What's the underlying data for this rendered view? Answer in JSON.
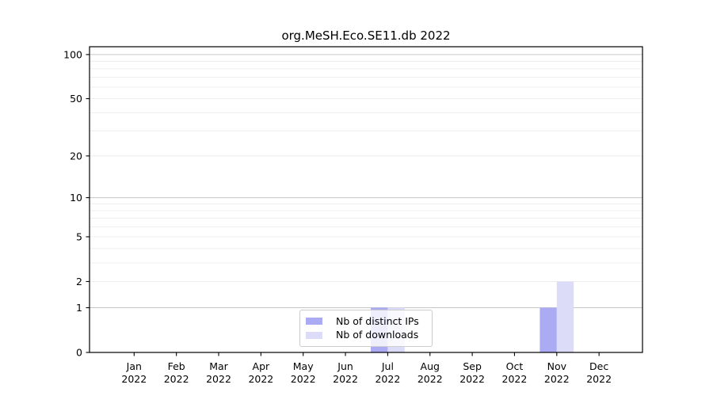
{
  "title": "org.MeSH.Eco.SE11.db 2022",
  "legend": {
    "items": [
      {
        "label": "Nb of distinct IPs",
        "color": "#ababf4"
      },
      {
        "label": "Nb of downloads",
        "color": "#dcdcf8"
      }
    ]
  },
  "chart_data": {
    "type": "bar",
    "title": "org.MeSH.Eco.SE11.db 2022",
    "categories": [
      "Jan 2022",
      "Feb 2022",
      "Mar 2022",
      "Apr 2022",
      "May 2022",
      "Jun 2022",
      "Jul 2022",
      "Aug 2022",
      "Sep 2022",
      "Oct 2022",
      "Nov 2022",
      "Dec 2022"
    ],
    "series": [
      {
        "name": "Nb of distinct IPs",
        "color": "#ababf4",
        "values": [
          0,
          0,
          0,
          0,
          0,
          0,
          1,
          0,
          0,
          0,
          1,
          0
        ]
      },
      {
        "name": "Nb of downloads",
        "color": "#dcdcf8",
        "values": [
          0,
          0,
          0,
          0,
          0,
          0,
          1,
          0,
          0,
          0,
          2,
          0
        ]
      }
    ],
    "xlabel": "",
    "ylabel": "",
    "y_scale": "log1p",
    "ylim": [
      0,
      113
    ],
    "y_ticks": [
      0,
      1,
      2,
      5,
      10,
      20,
      50,
      100
    ],
    "grid": {
      "major_lines": [
        1,
        10,
        100
      ],
      "minor_lines": [
        2,
        3,
        4,
        5,
        6,
        7,
        8,
        9,
        20,
        30,
        40,
        50,
        60,
        70,
        80,
        90
      ],
      "major_color": "#c6c6c6",
      "minor_color": "#ececec"
    },
    "legend_position": "lower center",
    "axis_color": "#000000",
    "background_color": "#ffffff"
  }
}
